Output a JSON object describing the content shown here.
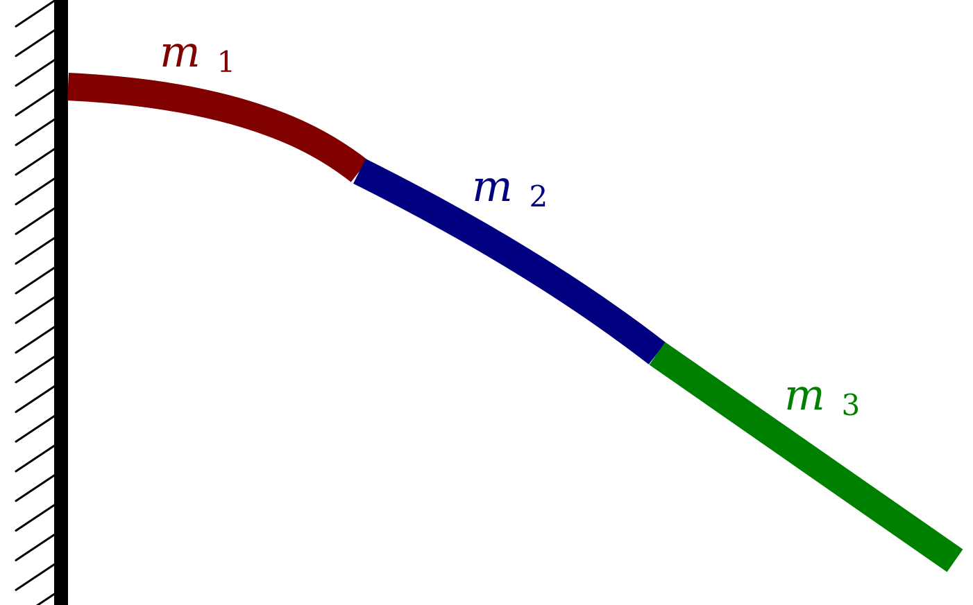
{
  "diagram": {
    "wall": {
      "icon": "hatched-wall-icon",
      "color": "#000000"
    },
    "segments": [
      {
        "id": "m1",
        "label_main": "m",
        "label_sub": "1",
        "color": "#800000"
      },
      {
        "id": "m2",
        "label_main": "m",
        "label_sub": "2",
        "color": "#000080"
      },
      {
        "id": "m3",
        "label_main": "m",
        "label_sub": "3",
        "color": "#008000"
      }
    ]
  }
}
